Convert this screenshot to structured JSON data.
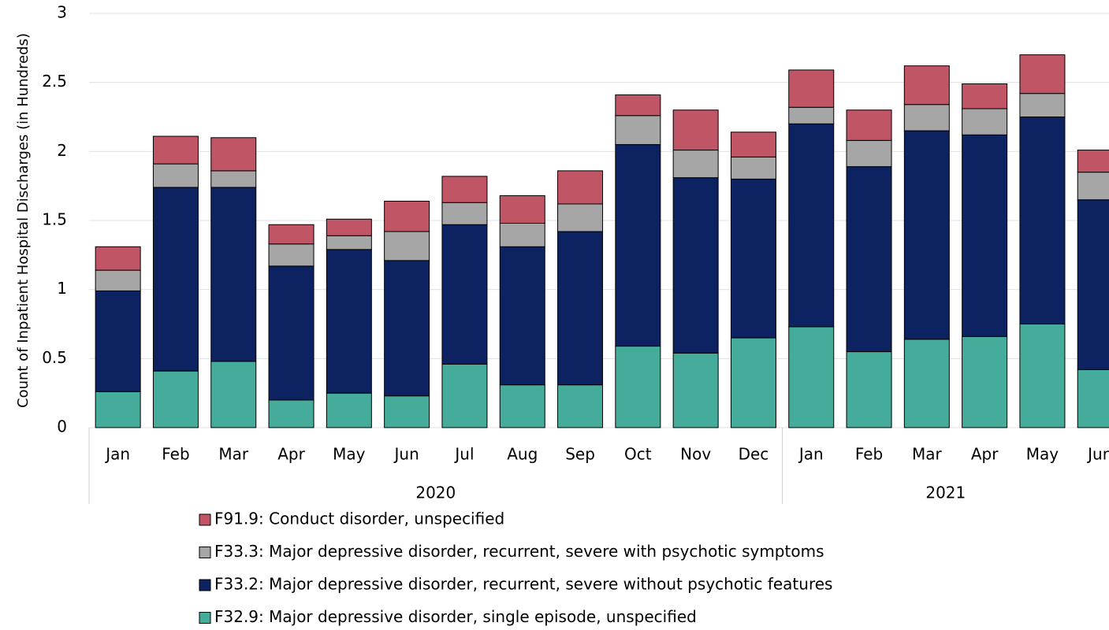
{
  "chart_data": {
    "type": "stacked_bar",
    "y_label": "Count of Inpatient Hospital Discharges (in Hundreds)",
    "categories": [
      "Jan",
      "Feb",
      "Mar",
      "Apr",
      "May",
      "Jun",
      "Jul",
      "Aug",
      "Sep",
      "Oct",
      "Nov",
      "Dec",
      "Jan",
      "Feb",
      "Mar",
      "Apr",
      "May",
      "Jun"
    ],
    "groups": [
      {
        "label": "2020",
        "count": 12
      },
      {
        "label": "2021",
        "count": 6
      }
    ],
    "series": [
      {
        "name": "F32.9: Major depressive disorder, single episode, unspecified",
        "color": "#45ab9a",
        "values": [
          0.26,
          0.41,
          0.48,
          0.2,
          0.25,
          0.23,
          0.46,
          0.31,
          0.31,
          0.59,
          0.54,
          0.65,
          0.73,
          0.55,
          0.64,
          0.66,
          0.75,
          0.42
        ]
      },
      {
        "name": "F33.2: Major depressive disorder, recurrent, severe without psychotic features",
        "color": "#0d2361",
        "values": [
          0.73,
          1.33,
          1.26,
          0.97,
          1.04,
          0.98,
          1.01,
          1.0,
          1.11,
          1.46,
          1.27,
          1.15,
          1.47,
          1.34,
          1.51,
          1.46,
          1.5,
          1.23
        ]
      },
      {
        "name": "F33.3: Major depressive disorder, recurrent, severe with psychotic symptoms",
        "color": "#a6a6a6",
        "values": [
          0.15,
          0.17,
          0.12,
          0.16,
          0.1,
          0.21,
          0.16,
          0.17,
          0.2,
          0.21,
          0.2,
          0.16,
          0.12,
          0.19,
          0.19,
          0.19,
          0.17,
          0.2
        ]
      },
      {
        "name": "F91.9: Conduct disorder, unspecified",
        "color": "#c05566",
        "values": [
          0.17,
          0.2,
          0.24,
          0.14,
          0.12,
          0.22,
          0.19,
          0.2,
          0.24,
          0.15,
          0.29,
          0.18,
          0.27,
          0.22,
          0.28,
          0.18,
          0.28,
          0.16
        ]
      }
    ],
    "ylim": [
      0,
      3
    ],
    "yticks": [
      0,
      0.5,
      1,
      1.5,
      2,
      2.5,
      3
    ],
    "grid": true
  }
}
